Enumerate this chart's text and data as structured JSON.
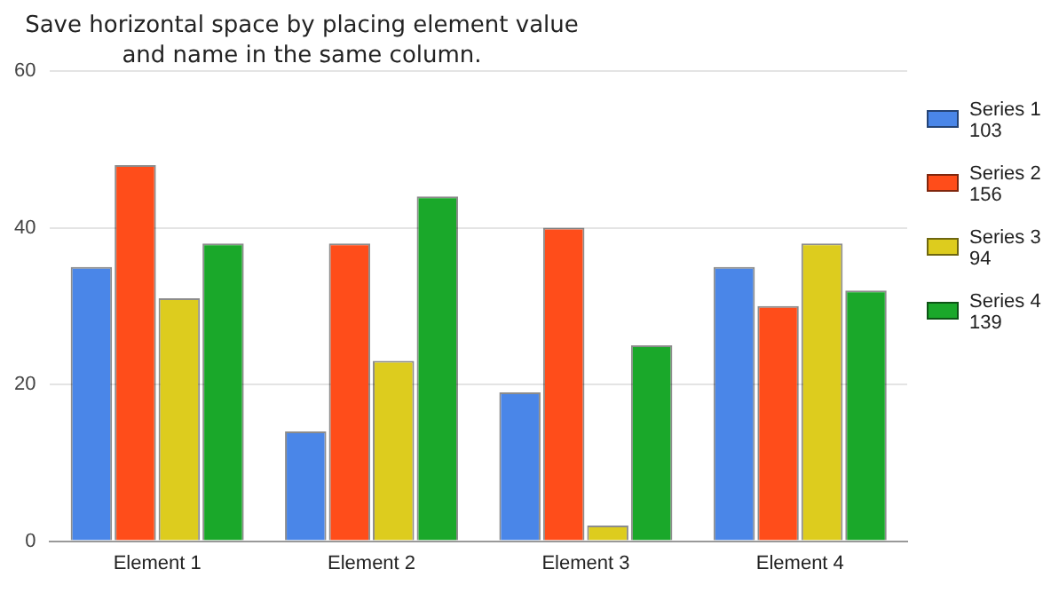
{
  "chart_data": {
    "type": "bar",
    "title": "Save horizontal space by placing element value and name in the same column.",
    "categories": [
      "Element 1",
      "Element 2",
      "Element 3",
      "Element 4"
    ],
    "series": [
      {
        "name": "Series 1\n103",
        "color": "#4a86e8",
        "values": [
          35,
          14,
          19,
          35
        ]
      },
      {
        "name": "Series 2\n156",
        "color": "#ff4d1a",
        "values": [
          48,
          38,
          40,
          30
        ]
      },
      {
        "name": "Series 3\n94",
        "color": "#ddcc1e",
        "values": [
          31,
          23,
          2,
          38
        ]
      },
      {
        "name": "Series 4\n139",
        "color": "#1aa82a",
        "values": [
          38,
          44,
          25,
          32
        ]
      }
    ],
    "ylim": [
      0,
      60
    ],
    "yticks": [
      0,
      20,
      40,
      60
    ],
    "grid": "y",
    "legend": "right"
  }
}
